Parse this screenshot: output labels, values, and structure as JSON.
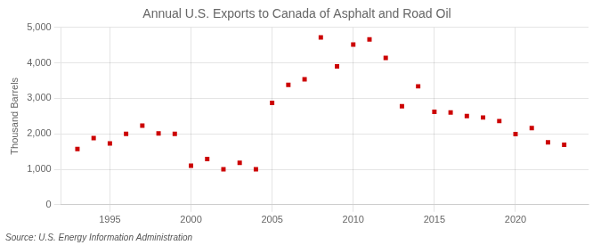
{
  "chart_data": {
    "type": "scatter",
    "title": "Annual U.S. Exports to Canada of Asphalt and Road Oil",
    "ylabel": "Thousand Barrels",
    "source": "Source: U.S. Energy Information Administration",
    "x": [
      1993,
      1994,
      1995,
      1996,
      1997,
      1998,
      1999,
      2000,
      2001,
      2002,
      2003,
      2004,
      2005,
      2006,
      2007,
      2008,
      2009,
      2010,
      2011,
      2012,
      2013,
      2014,
      2015,
      2016,
      2017,
      2018,
      2019,
      2020,
      2021,
      2022,
      2023
    ],
    "values": [
      1570,
      1880,
      1730,
      2000,
      2230,
      2010,
      2000,
      1100,
      1290,
      1000,
      1180,
      1000,
      2870,
      3380,
      3540,
      4720,
      3900,
      4520,
      4660,
      4140,
      2780,
      3340,
      2620,
      2600,
      2500,
      2460,
      2360,
      1990,
      2160,
      1760,
      1690
    ],
    "color": "#cc0000",
    "marker": "square",
    "xlim": [
      1992.0,
      2024.5
    ],
    "xticks": [
      1995,
      2000,
      2005,
      2010,
      2015,
      2020
    ],
    "ylim": [
      0,
      5000
    ],
    "yticks": [
      0,
      {
        "value": 1000,
        "label": "1,000"
      },
      {
        "value": 2000,
        "label": "2,000"
      },
      {
        "value": 3000,
        "label": "3,000"
      },
      {
        "value": 4000,
        "label": "4,000"
      },
      {
        "value": 5000,
        "label": "5,000"
      }
    ],
    "grid": true
  }
}
